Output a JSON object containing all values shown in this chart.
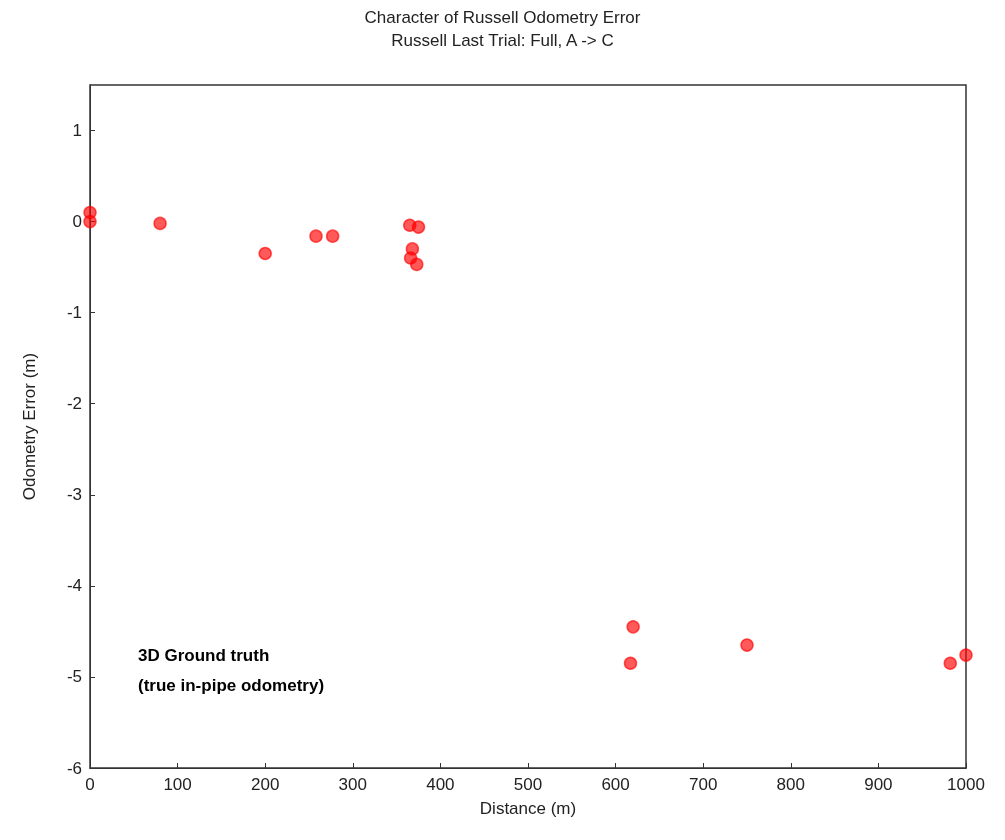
{
  "chart_data": {
    "type": "scatter",
    "title": "Character of Russell Odometry Error",
    "subtitle": "Russell Last Trial: Full, A -> C",
    "xlabel": "Distance (m)",
    "ylabel": "Odometry Error (m)",
    "annotations": [
      "3D Ground truth\n(true in-pipe odometry)"
    ],
    "series": [
      {
        "color": "#ff0000",
        "x": [
          0,
          0,
          80,
          200,
          258,
          277,
          365,
          375,
          368,
          366,
          373,
          620,
          617,
          750,
          982,
          1000
        ],
        "values": [
          0.1,
          0.0,
          -0.02,
          -0.35,
          -0.16,
          -0.16,
          -0.04,
          -0.06,
          -0.3,
          -0.4,
          -0.47,
          -4.45,
          -4.85,
          -4.65,
          -4.85,
          -4.76
        ]
      }
    ],
    "xlim": [
      0,
      1000
    ],
    "xticks": [
      0,
      100,
      200,
      300,
      400,
      500,
      600,
      700,
      800,
      900,
      1000
    ],
    "ylim": [
      -6,
      1.5
    ],
    "yticks": [
      -6,
      -5,
      -4,
      -3,
      -2,
      -1,
      0,
      1
    ],
    "marker": "circle",
    "grid": false
  }
}
